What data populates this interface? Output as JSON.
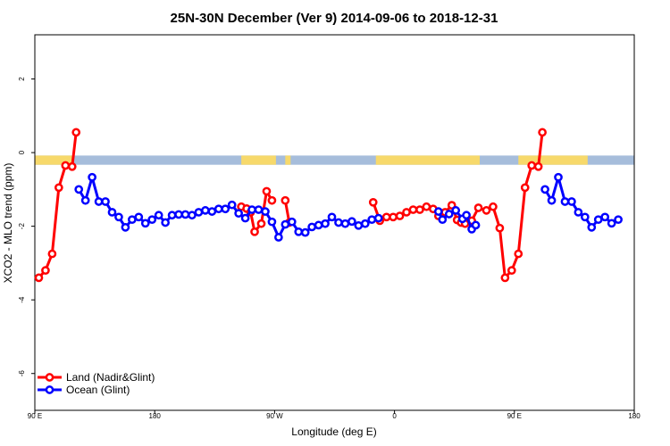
{
  "chart_data": {
    "type": "line",
    "title": "25N-30N December (Ver 9)   2014-09-06 to 2018-12-31",
    "xlabel": "Longitude (deg E)",
    "ylabel": "XCO2 - MLO trend (ppm)",
    "xlim": [
      90,
      540
    ],
    "ylim": [
      -7,
      3.2
    ],
    "x_ticks": [
      {
        "value": 90,
        "label": "90 E"
      },
      {
        "value": 180,
        "label": "180"
      },
      {
        "value": 270,
        "label": "90 W"
      },
      {
        "value": 360,
        "label": "0"
      },
      {
        "value": 450,
        "label": "90 E"
      },
      {
        "value": 540,
        "label": "180"
      }
    ],
    "y_ticks": [
      {
        "value": 2,
        "label": "2"
      },
      {
        "value": 0,
        "label": "0"
      },
      {
        "value": -2,
        "label": "-2"
      },
      {
        "value": -4,
        "label": "-4"
      },
      {
        "value": -6,
        "label": "-6"
      }
    ],
    "land_ocean_strip": {
      "y_range": [
        -0.33,
        -0.08
      ],
      "ocean_color": "#a6bddb",
      "land_color": "#f7d96b",
      "land_ranges": [
        [
          90,
          118
        ],
        [
          245,
          271
        ],
        [
          278,
          282
        ],
        [
          346,
          424
        ],
        [
          453,
          505
        ]
      ]
    },
    "series": [
      {
        "name": "Land (Nadir&Glint)",
        "color": "#ff0000",
        "segments": [
          [
            [
              93,
              -3.4
            ],
            [
              98,
              -3.2
            ],
            [
              103,
              -2.75
            ],
            [
              108,
              -0.95
            ],
            [
              113,
              -0.35
            ],
            [
              118,
              -0.38
            ],
            [
              121,
              0.55
            ]
          ],
          [
            [
              245,
              -1.47
            ],
            [
              249,
              -1.52
            ],
            [
              252,
              -1.62
            ],
            [
              255,
              -2.15
            ],
            [
              260,
              -1.93
            ],
            [
              264,
              -1.05
            ],
            [
              268,
              -1.3
            ]
          ],
          [
            [
              278,
              -1.3
            ],
            [
              281,
              -1.9
            ]
          ],
          [
            [
              344,
              -1.35
            ],
            [
              349,
              -1.85
            ],
            [
              354,
              -1.75
            ],
            [
              359,
              -1.75
            ],
            [
              364,
              -1.72
            ],
            [
              369,
              -1.62
            ],
            [
              374,
              -1.55
            ],
            [
              379,
              -1.55
            ],
            [
              384,
              -1.47
            ],
            [
              389,
              -1.53
            ],
            [
              393,
              -1.72
            ],
            [
              398,
              -1.62
            ],
            [
              403,
              -1.43
            ],
            [
              407,
              -1.83
            ],
            [
              410,
              -1.9
            ],
            [
              413,
              -1.93
            ],
            [
              418,
              -1.85
            ],
            [
              423,
              -1.5
            ],
            [
              429,
              -1.57
            ],
            [
              434,
              -1.47
            ],
            [
              439,
              -2.05
            ],
            [
              443,
              -3.4
            ],
            [
              448,
              -3.2
            ],
            [
              453,
              -2.75
            ],
            [
              458,
              -0.95
            ],
            [
              463,
              -0.35
            ],
            [
              468,
              -0.38
            ],
            [
              471,
              0.55
            ]
          ]
        ]
      },
      {
        "name": "Ocean (Glint)",
        "color": "#0000ff",
        "segments": [
          [
            [
              123,
              -1.0
            ],
            [
              128,
              -1.3
            ],
            [
              133,
              -0.67
            ],
            [
              138,
              -1.33
            ],
            [
              143,
              -1.33
            ],
            [
              148,
              -1.62
            ],
            [
              153,
              -1.75
            ],
            [
              158,
              -2.03
            ],
            [
              163,
              -1.82
            ],
            [
              168,
              -1.75
            ],
            [
              173,
              -1.92
            ],
            [
              178,
              -1.82
            ],
            [
              183,
              -1.7
            ],
            [
              188,
              -1.9
            ],
            [
              193,
              -1.7
            ],
            [
              198,
              -1.68
            ],
            [
              203,
              -1.68
            ],
            [
              208,
              -1.7
            ],
            [
              213,
              -1.62
            ],
            [
              218,
              -1.57
            ],
            [
              223,
              -1.6
            ],
            [
              228,
              -1.53
            ],
            [
              233,
              -1.53
            ],
            [
              238,
              -1.42
            ],
            [
              243,
              -1.65
            ],
            [
              248,
              -1.78
            ],
            [
              253,
              -1.55
            ],
            [
              258,
              -1.55
            ],
            [
              263,
              -1.6
            ],
            [
              268,
              -1.88
            ],
            [
              273,
              -2.3
            ],
            [
              278,
              -1.95
            ],
            [
              283,
              -1.88
            ],
            [
              288,
              -2.15
            ],
            [
              293,
              -2.17
            ],
            [
              298,
              -2.02
            ],
            [
              303,
              -1.97
            ],
            [
              308,
              -1.93
            ],
            [
              313,
              -1.75
            ],
            [
              318,
              -1.9
            ],
            [
              323,
              -1.93
            ],
            [
              328,
              -1.87
            ],
            [
              333,
              -1.98
            ],
            [
              338,
              -1.93
            ],
            [
              343,
              -1.82
            ],
            [
              348,
              -1.78
            ]
          ],
          [
            [
              393,
              -1.6
            ],
            [
              396,
              -1.82
            ],
            [
              401,
              -1.67
            ],
            [
              406,
              -1.57
            ],
            [
              411,
              -1.8
            ],
            [
              414,
              -1.7
            ],
            [
              418,
              -2.08
            ],
            [
              421,
              -1.97
            ]
          ],
          [
            [
              473,
              -1.0
            ],
            [
              478,
              -1.3
            ],
            [
              483,
              -0.67
            ],
            [
              488,
              -1.33
            ],
            [
              493,
              -1.33
            ],
            [
              498,
              -1.62
            ],
            [
              503,
              -1.75
            ],
            [
              508,
              -2.03
            ],
            [
              513,
              -1.82
            ],
            [
              518,
              -1.75
            ],
            [
              523,
              -1.92
            ],
            [
              528,
              -1.82
            ]
          ]
        ]
      }
    ],
    "legend": {
      "placement": "bottom-left",
      "entries": [
        "Land (Nadir&Glint)",
        "Ocean (Glint)"
      ]
    }
  }
}
